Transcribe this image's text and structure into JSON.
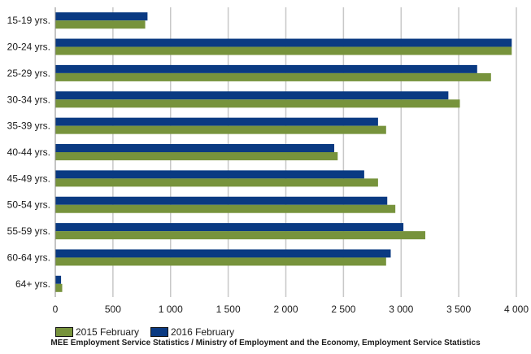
{
  "chart_data": {
    "type": "bar",
    "orientation": "horizontal",
    "categories": [
      "15-19 yrs.",
      "20-24 yrs.",
      "25-29 yrs.",
      "30-34 yrs.",
      "35-39 yrs.",
      "40-44 yrs.",
      "45-49 yrs.",
      "50-54 yrs.",
      "55-59 yrs.",
      "60-64 yrs.",
      "64+ yrs."
    ],
    "series": [
      {
        "name": "2016 February",
        "color": "#0a3a82",
        "values": [
          800,
          3960,
          3660,
          3410,
          2800,
          2420,
          2680,
          2880,
          3020,
          2910,
          50
        ]
      },
      {
        "name": "2015 February",
        "color": "#77933c",
        "values": [
          780,
          3960,
          3780,
          3510,
          2870,
          2450,
          2800,
          2950,
          3210,
          2870,
          60
        ]
      }
    ],
    "xlim": [
      0,
      4000
    ],
    "xticks": [
      "0",
      "500",
      "1 000",
      "1 500",
      "2 000",
      "2 500",
      "3 000",
      "3 500",
      "4 000"
    ],
    "xtick_values": [
      0,
      500,
      1000,
      1500,
      2000,
      2500,
      3000,
      3500,
      4000
    ],
    "grid": true,
    "legend_position": "bottom-left"
  },
  "legend": [
    {
      "label": "2015 February",
      "color": "#77933c"
    },
    {
      "label": "2016 February",
      "color": "#0a3a82"
    }
  ],
  "source_text": "MEE Employment Service Statistics / Ministry of Employment and the Economy, Employment Service Statistics"
}
